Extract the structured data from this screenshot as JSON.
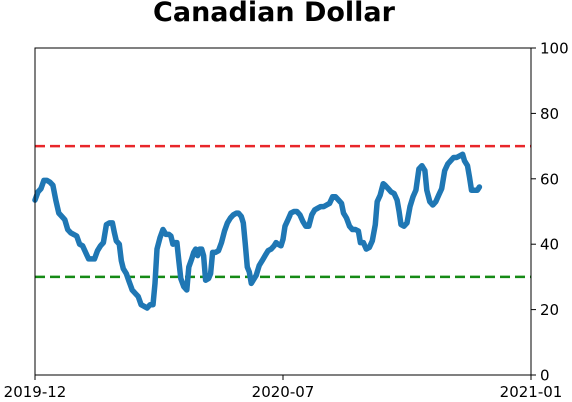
{
  "chart_data": {
    "type": "line",
    "title": "Canadian Dollar",
    "xlabel": "",
    "ylabel": "",
    "x_tick_labels": [
      "2019-12",
      "2020-07",
      "2021-01"
    ],
    "y_ticks": [
      0,
      20,
      40,
      60,
      80,
      100
    ],
    "ylim": [
      0,
      100
    ],
    "y_axis_side": "right",
    "grid": false,
    "reference_lines": [
      {
        "y": 70,
        "color": "#e8262a",
        "style": "dashed"
      },
      {
        "y": 30,
        "color": "#158a15",
        "style": "dashed"
      }
    ],
    "series": [
      {
        "color": "#1f77b4",
        "points": [
          [
            0.0,
            53.5
          ],
          [
            0.006,
            56
          ],
          [
            0.012,
            57
          ],
          [
            0.018,
            59.5
          ],
          [
            0.024,
            59.5
          ],
          [
            0.03,
            59
          ],
          [
            0.036,
            58
          ],
          [
            0.042,
            53.5
          ],
          [
            0.048,
            49.5
          ],
          [
            0.054,
            48.5
          ],
          [
            0.06,
            47.5
          ],
          [
            0.066,
            44.5
          ],
          [
            0.072,
            43.5
          ],
          [
            0.078,
            43
          ],
          [
            0.084,
            42.5
          ],
          [
            0.09,
            40
          ],
          [
            0.096,
            39.5
          ],
          [
            0.102,
            37.5
          ],
          [
            0.108,
            35.5
          ],
          [
            0.114,
            35.5
          ],
          [
            0.12,
            35.5
          ],
          [
            0.126,
            38
          ],
          [
            0.132,
            39.5
          ],
          [
            0.138,
            40.5
          ],
          [
            0.144,
            46
          ],
          [
            0.15,
            46.5
          ],
          [
            0.156,
            46.5
          ],
          [
            0.16,
            43.5
          ],
          [
            0.164,
            41
          ],
          [
            0.17,
            40
          ],
          [
            0.174,
            35
          ],
          [
            0.178,
            32.5
          ],
          [
            0.184,
            31
          ],
          [
            0.19,
            28.5
          ],
          [
            0.196,
            26
          ],
          [
            0.202,
            25
          ],
          [
            0.208,
            24
          ],
          [
            0.214,
            21.5
          ],
          [
            0.22,
            21
          ],
          [
            0.226,
            20.5
          ],
          [
            0.232,
            21.5
          ],
          [
            0.238,
            21.5
          ],
          [
            0.242,
            28
          ],
          [
            0.246,
            38.5
          ],
          [
            0.252,
            42
          ],
          [
            0.258,
            44.5
          ],
          [
            0.264,
            43
          ],
          [
            0.27,
            43
          ],
          [
            0.274,
            42.5
          ],
          [
            0.278,
            40
          ],
          [
            0.282,
            40.5
          ],
          [
            0.286,
            40.5
          ],
          [
            0.29,
            35
          ],
          [
            0.294,
            29.5
          ],
          [
            0.3,
            27
          ],
          [
            0.306,
            26
          ],
          [
            0.31,
            33
          ],
          [
            0.316,
            35.5
          ],
          [
            0.32,
            37.5
          ],
          [
            0.324,
            38.5
          ],
          [
            0.328,
            36.5
          ],
          [
            0.332,
            38.5
          ],
          [
            0.336,
            38.5
          ],
          [
            0.34,
            36.5
          ],
          [
            0.344,
            29
          ],
          [
            0.35,
            29.5
          ],
          [
            0.354,
            31
          ],
          [
            0.358,
            37.5
          ],
          [
            0.364,
            37.5
          ],
          [
            0.37,
            38
          ],
          [
            0.376,
            40.5
          ],
          [
            0.382,
            44
          ],
          [
            0.388,
            46.5
          ],
          [
            0.394,
            48
          ],
          [
            0.4,
            49
          ],
          [
            0.406,
            49.5
          ],
          [
            0.41,
            49.5
          ],
          [
            0.416,
            48.5
          ],
          [
            0.42,
            46.5
          ],
          [
            0.424,
            40
          ],
          [
            0.428,
            33
          ],
          [
            0.432,
            31.5
          ],
          [
            0.436,
            28
          ],
          [
            0.44,
            29
          ],
          [
            0.446,
            30.5
          ],
          [
            0.452,
            33.5
          ],
          [
            0.458,
            35
          ],
          [
            0.464,
            36.5
          ],
          [
            0.47,
            38
          ],
          [
            0.476,
            38.5
          ],
          [
            0.482,
            39.5
          ],
          [
            0.486,
            40.5
          ],
          [
            0.49,
            40
          ],
          [
            0.496,
            39.5
          ],
          [
            0.5,
            41.5
          ],
          [
            0.504,
            45.5
          ],
          [
            0.51,
            47.5
          ],
          [
            0.516,
            49.5
          ],
          [
            0.522,
            50
          ],
          [
            0.528,
            50
          ],
          [
            0.534,
            49
          ],
          [
            0.54,
            47
          ],
          [
            0.546,
            45.5
          ],
          [
            0.552,
            45.5
          ],
          [
            0.558,
            49
          ],
          [
            0.564,
            50.5
          ],
          [
            0.57,
            51
          ],
          [
            0.576,
            51.5
          ],
          [
            0.582,
            51.5
          ],
          [
            0.588,
            52
          ],
          [
            0.594,
            52.5
          ],
          [
            0.6,
            54.5
          ],
          [
            0.606,
            54.5
          ],
          [
            0.612,
            53.5
          ],
          [
            0.618,
            52.5
          ],
          [
            0.622,
            49.5
          ],
          [
            0.628,
            48
          ],
          [
            0.634,
            45.5
          ],
          [
            0.64,
            44.5
          ],
          [
            0.646,
            44.5
          ],
          [
            0.652,
            44
          ],
          [
            0.656,
            40.5
          ],
          [
            0.662,
            40.5
          ],
          [
            0.668,
            38.5
          ],
          [
            0.674,
            39
          ],
          [
            0.68,
            41
          ],
          [
            0.686,
            46
          ],
          [
            0.69,
            53
          ],
          [
            0.696,
            55
          ],
          [
            0.702,
            58.5
          ],
          [
            0.706,
            58
          ],
          [
            0.712,
            57
          ],
          [
            0.718,
            56
          ],
          [
            0.724,
            55.5
          ],
          [
            0.73,
            53.5
          ],
          [
            0.734,
            50
          ],
          [
            0.738,
            46
          ],
          [
            0.744,
            45.5
          ],
          [
            0.75,
            46.5
          ],
          [
            0.756,
            51.5
          ],
          [
            0.762,
            54.5
          ],
          [
            0.768,
            56.5
          ],
          [
            0.774,
            63
          ],
          [
            0.78,
            64
          ],
          [
            0.786,
            62.5
          ],
          [
            0.79,
            56.5
          ],
          [
            0.796,
            53
          ],
          [
            0.802,
            52
          ],
          [
            0.808,
            53
          ],
          [
            0.814,
            55
          ],
          [
            0.82,
            57
          ],
          [
            0.826,
            62.5
          ],
          [
            0.832,
            64.5
          ],
          [
            0.838,
            65.5
          ],
          [
            0.844,
            66.5
          ],
          [
            0.85,
            66.5
          ],
          [
            0.856,
            67
          ],
          [
            0.862,
            67.5
          ],
          [
            0.866,
            65.5
          ],
          [
            0.872,
            64
          ],
          [
            0.876,
            60.5
          ],
          [
            0.88,
            56.5
          ],
          [
            0.886,
            56.5
          ],
          [
            0.892,
            56.5
          ],
          [
            0.896,
            57.5
          ]
        ]
      }
    ]
  }
}
